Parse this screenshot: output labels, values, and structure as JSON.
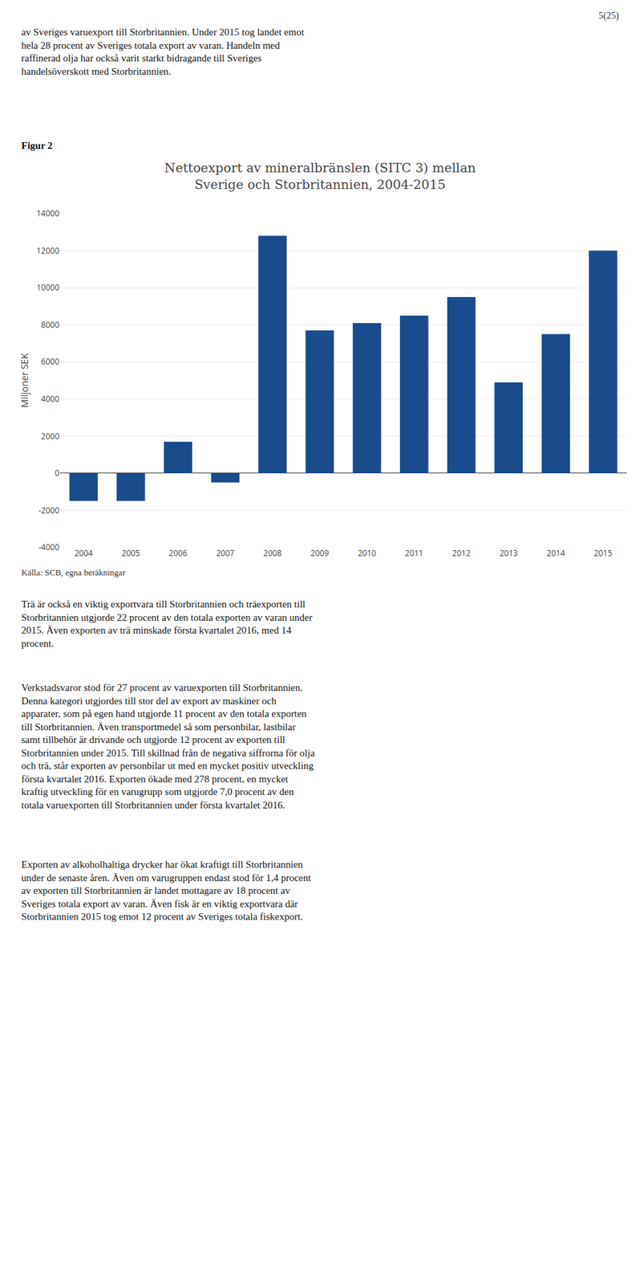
{
  "chart_data": {
    "type": "bar",
    "title": "Nettoexport av mineralbränslen (SITC 3) mellan\nSverige och Storbritannien, 2004-2015",
    "ylabel": "Miljoner SEK",
    "categories": [
      "2004",
      "2005",
      "2006",
      "2007",
      "2008",
      "2009",
      "2010",
      "2011",
      "2012",
      "2013",
      "2014",
      "2015"
    ],
    "values": [
      -1500,
      -1500,
      1700,
      -500,
      12800,
      7700,
      8100,
      8500,
      9500,
      4900,
      7500,
      12000
    ],
    "color": "#1a4b8a",
    "ylim": [
      -4000,
      14000
    ],
    "yticks": [
      -4000,
      -2000,
      0,
      2000,
      4000,
      6000,
      8000,
      10000,
      12000,
      14000
    ],
    "grid": true,
    "annotations": [
      "5(25)",
      "av Sveriges varuexport till Storbritannien. Under 2015 tog landet emot\nhela 28 procent av Sveriges totala export av varan. Handeln med\nraffinerad olja har också varit starkt bidragande till Sveriges\nhandelsöverskott med Storbritannien.",
      "Figur 2",
      "Källa: SCB, egna beräkningar",
      "Trä är också en viktig exportvara till Storbritannien och träexporten till\nStorbritannien utgjorde 22 procent av den totala exporten av varan under\n2015. Även exporten av trä minskade första kvartalet 2016, med 14\nprocent.",
      "Verkstadsvaror stod för 27 procent av varuexporten till Storbritannien.\nDenna kategori utgjordes till stor del av export av maskiner och\napparater, som på egen hand utgjorde 11 procent av den totala exporten\ntill Storbritannien. Även transportmedel så som personbilar, lastbilar\nsamt tillbehör är drivande och utgjorde 12 procent av exporten till\nStorbritannien under 2015. Till skillnad från de negativa siffrorna för olja\noch trä, står exporten av personbilar ut med en mycket positiv utveckling\nförsta kvartalet 2016. Exporten ökade med 278 procent, en mycket\nkraftig utveckling för en varugrupp som utgjorde 7,0 procent av den\ntotala varuexporten till Storbritannien under första kvartalet 2016.",
      "Exporten av alkoholhaltiga drycker har ökat kraftigt till Storbritannien\nunder de senaste åren. Även om varugruppen endast stod för 1,4 procent\nav exporten till Storbritannien är landet mottagare av 18 procent av\nSveriges totala export av varan. Även fisk är en viktig exportvara där\nStorbritannien 2015 tog emot 12 procent av Sveriges totala fiskexport."
    ]
  }
}
